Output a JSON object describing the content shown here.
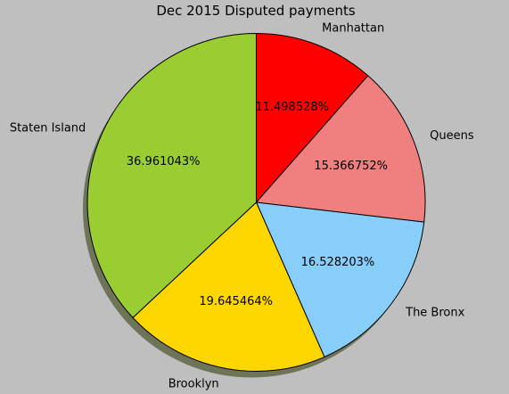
{
  "chart_data": {
    "type": "pie",
    "title": "Dec 2015 Disputed payments",
    "slices": [
      {
        "label": "Manhattan",
        "value": 11.498528,
        "pct_label": "11.498528%",
        "color": "#ff0000"
      },
      {
        "label": "Queens",
        "value": 15.366752,
        "pct_label": "15.366752%",
        "color": "#f08080"
      },
      {
        "label": "The Bronx",
        "value": 16.528203,
        "pct_label": "16.528203%",
        "color": "#87cefa"
      },
      {
        "label": "Brooklyn",
        "value": 19.645464,
        "pct_label": "19.645464%",
        "color": "#ffd700"
      },
      {
        "label": "Staten Island",
        "value": 36.961043,
        "pct_label": "36.961043%",
        "color": "#9acd32"
      }
    ],
    "start_angle_deg": 90,
    "direction": "clockwise",
    "shadow": true,
    "background_color": "#bfbfbf",
    "edge_color": "#000000"
  }
}
